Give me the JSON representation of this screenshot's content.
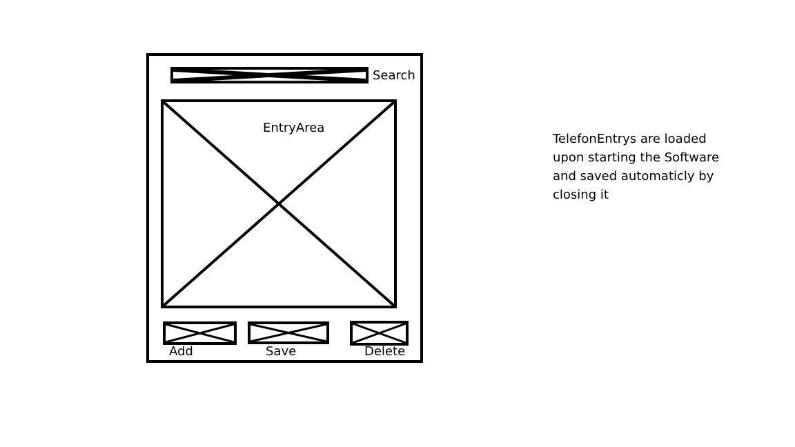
{
  "wireframe": {
    "search_label": "Search",
    "entry_area_label": "EntryArea",
    "buttons": {
      "add": "Add",
      "save": "Save",
      "delete": "Delete"
    }
  },
  "note": {
    "lines": [
      "TelefonEntrys are loaded",
      "upon starting the Software",
      "and saved automaticly by",
      "closing it"
    ]
  },
  "colors": {
    "stroke": "#000000",
    "background": "#ffffff"
  }
}
